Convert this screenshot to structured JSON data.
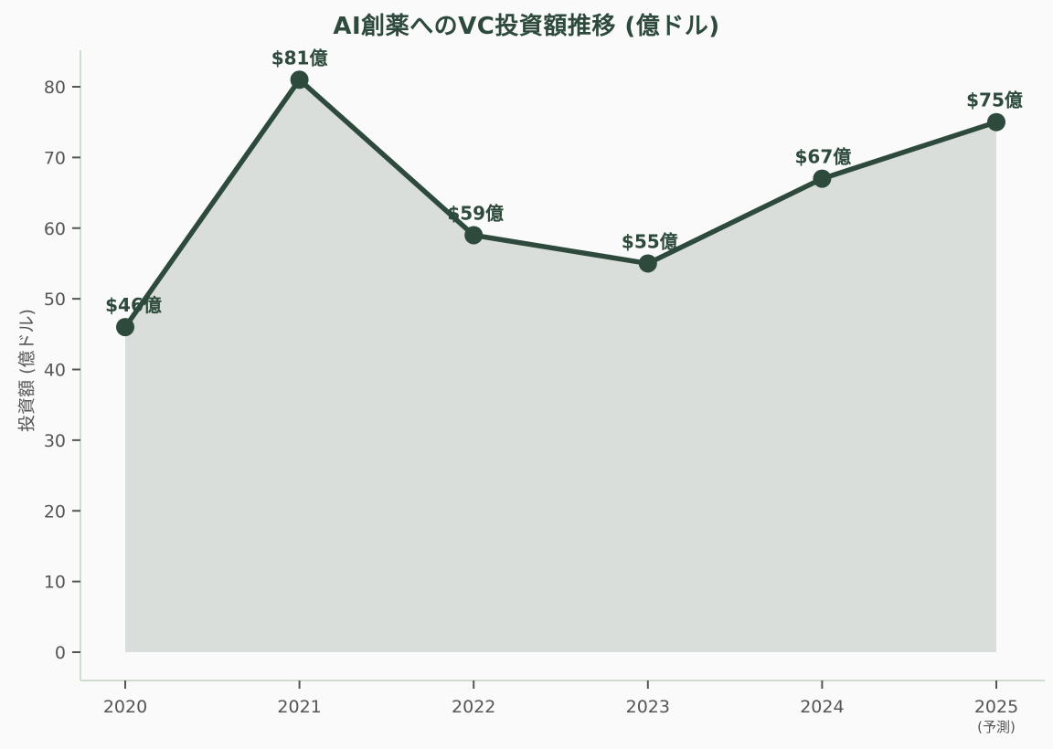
{
  "chart_data": {
    "type": "area",
    "title": "AI創薬へのVC投資額推移 (億ドル)",
    "ylabel": "投資額 (億ドル)",
    "xlabel": "",
    "categories": [
      "2020",
      "2021",
      "2022",
      "2023",
      "2024",
      "2025"
    ],
    "values": [
      46,
      81,
      59,
      55,
      67,
      75
    ],
    "point_labels": [
      "$46億",
      "$81億",
      "$59億",
      "$55億",
      "$67億",
      "$75億"
    ],
    "last_category_note": "(予測)",
    "yticks": [
      0,
      10,
      20,
      30,
      40,
      50,
      60,
      70,
      80
    ],
    "ylim": [
      0,
      84
    ],
    "grid": false,
    "legend": "none",
    "colors": {
      "line": "#2d4a3c",
      "marker": "#2d4a3c",
      "area_fill": "#dadeda",
      "title": "#2d4a3c",
      "value_labels": "#2d4a3c",
      "tick_text": "#555555",
      "axis_line": "#cfdccf",
      "background": "#fafafa"
    }
  }
}
